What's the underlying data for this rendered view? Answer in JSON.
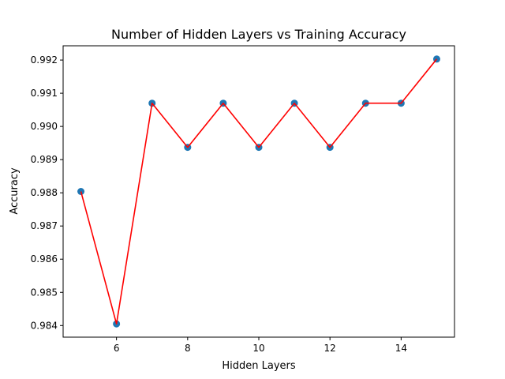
{
  "chart_data": {
    "type": "line",
    "title": "Number of Hidden Layers vs Training Accuracy",
    "xlabel": "Hidden Layers",
    "ylabel": "Accuracy",
    "x": [
      5,
      6,
      7,
      8,
      9,
      10,
      11,
      12,
      13,
      14,
      15
    ],
    "series": [
      {
        "values": [
          0.98804,
          0.98405,
          0.9907,
          0.98937,
          0.9907,
          0.98937,
          0.9907,
          0.98937,
          0.9907,
          0.9907,
          0.99203
        ],
        "line_color": "#ff0000",
        "marker_color": "#1f77b4",
        "marker": "circle"
      }
    ],
    "xlim": [
      4.5,
      15.5
    ],
    "ylim": [
      0.98365,
      0.99243
    ],
    "xticks": [
      6,
      8,
      10,
      12,
      14
    ],
    "xtick_labels": [
      "6",
      "8",
      "10",
      "12",
      "14"
    ],
    "yticks": [
      0.984,
      0.985,
      0.986,
      0.987,
      0.988,
      0.989,
      0.99,
      0.991,
      0.992
    ],
    "ytick_labels": [
      "0.984",
      "0.985",
      "0.986",
      "0.987",
      "0.988",
      "0.989",
      "0.990",
      "0.991",
      "0.992"
    ],
    "grid": false,
    "legend": false
  }
}
